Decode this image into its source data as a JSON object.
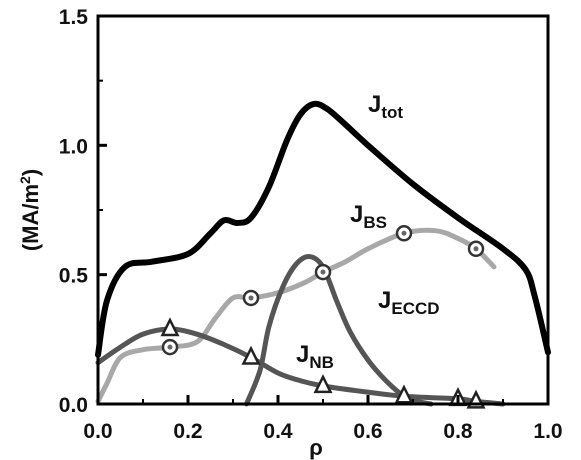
{
  "chart_data": {
    "type": "line",
    "xlabel": "ρ",
    "ylabel": "(MA/m",
    "ylabel_sup": "2",
    "ylabel_close": ")",
    "xlim": [
      0.0,
      1.0
    ],
    "ylim": [
      0.0,
      1.5
    ],
    "xticks": [
      0.0,
      0.2,
      0.4,
      0.6,
      0.8,
      1.0
    ],
    "xtick_labels": [
      "0.0",
      "0.2",
      "0.4",
      "0.6",
      "0.8",
      "1.0"
    ],
    "yticks": [
      0.0,
      0.5,
      1.0,
      1.5
    ],
    "ytick_labels": [
      "0.0",
      "0.5",
      "1.0",
      "1.5"
    ],
    "grid": false,
    "series": [
      {
        "name": "J",
        "name_sub": "tot",
        "color": "#000000",
        "marker": "none",
        "x": [
          0.0,
          0.02,
          0.06,
          0.12,
          0.2,
          0.25,
          0.28,
          0.31,
          0.34,
          0.38,
          0.42,
          0.45,
          0.48,
          0.51,
          0.55,
          0.6,
          0.7,
          0.8,
          0.9,
          0.95,
          0.97,
          1.0
        ],
        "y": [
          0.19,
          0.4,
          0.53,
          0.55,
          0.58,
          0.66,
          0.71,
          0.7,
          0.72,
          0.84,
          1.02,
          1.12,
          1.16,
          1.14,
          1.08,
          1.0,
          0.85,
          0.72,
          0.6,
          0.52,
          0.42,
          0.2
        ]
      },
      {
        "name": "J",
        "name_sub": "BS",
        "color": "#a8a8a8",
        "marker": "circle",
        "x": [
          0.0,
          0.02,
          0.05,
          0.1,
          0.16,
          0.22,
          0.26,
          0.3,
          0.34,
          0.4,
          0.46,
          0.5,
          0.55,
          0.6,
          0.68,
          0.75,
          0.8,
          0.84,
          0.88
        ],
        "y": [
          0.01,
          0.08,
          0.18,
          0.21,
          0.22,
          0.24,
          0.33,
          0.41,
          0.41,
          0.43,
          0.47,
          0.51,
          0.55,
          0.6,
          0.66,
          0.67,
          0.64,
          0.6,
          0.53
        ],
        "marker_x": [
          0.16,
          0.34,
          0.5,
          0.68,
          0.84
        ],
        "marker_y": [
          0.22,
          0.41,
          0.51,
          0.66,
          0.6
        ]
      },
      {
        "name": "J",
        "name_sub": "ECCD",
        "color": "#555555",
        "marker": "none",
        "x": [
          0.33,
          0.36,
          0.38,
          0.41,
          0.44,
          0.47,
          0.5,
          0.53,
          0.56,
          0.6,
          0.64,
          0.68,
          0.71,
          0.74
        ],
        "y": [
          0.0,
          0.13,
          0.3,
          0.45,
          0.54,
          0.57,
          0.53,
          0.4,
          0.28,
          0.17,
          0.09,
          0.03,
          0.01,
          0.0
        ]
      },
      {
        "name": "J",
        "name_sub": "NB",
        "color": "#555555",
        "marker": "triangle",
        "x": [
          0.0,
          0.05,
          0.1,
          0.16,
          0.22,
          0.28,
          0.34,
          0.4,
          0.45,
          0.5,
          0.58,
          0.68,
          0.8,
          0.84,
          0.9
        ],
        "y": [
          0.16,
          0.22,
          0.27,
          0.29,
          0.27,
          0.23,
          0.18,
          0.12,
          0.09,
          0.07,
          0.05,
          0.03,
          0.02,
          0.01,
          0.0
        ],
        "marker_x": [
          0.16,
          0.34,
          0.5,
          0.68,
          0.8,
          0.84
        ],
        "marker_y": [
          0.29,
          0.18,
          0.07,
          0.03,
          0.02,
          0.01
        ]
      }
    ]
  }
}
